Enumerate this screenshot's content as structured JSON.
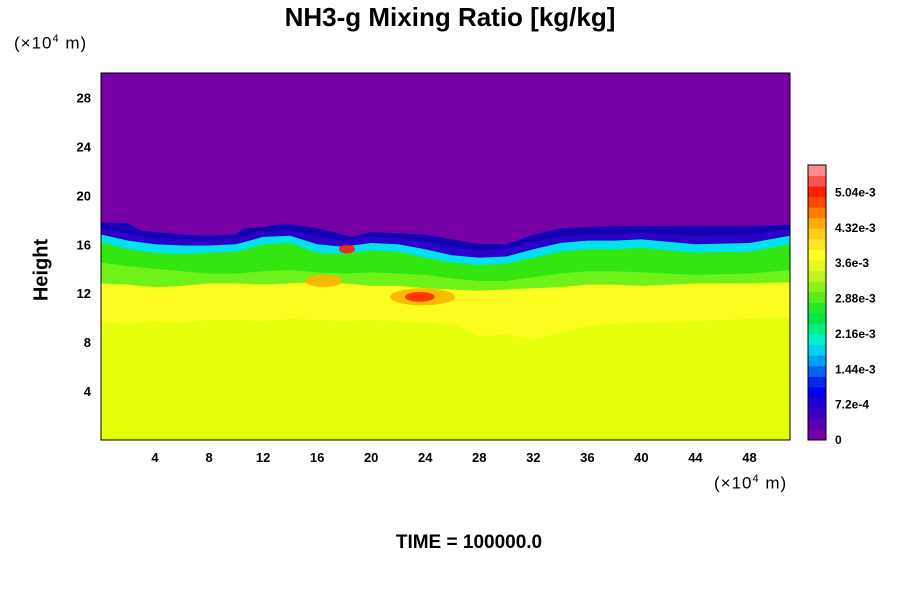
{
  "chart_data": {
    "type": "heatmap",
    "title": "NH3-g Mixing Ratio [kg/kg]",
    "ylabel": "Height",
    "xlabel": "",
    "y_unit_prefix": "(×10",
    "y_unit_exp": "4",
    "y_unit_suffix": " m)",
    "x_unit_prefix": "(×10",
    "x_unit_exp": "4",
    "x_unit_suffix": " m)",
    "xlim": [
      0,
      51
    ],
    "ylim": [
      0,
      30
    ],
    "x_ticks": [
      4,
      8,
      12,
      16,
      20,
      24,
      28,
      32,
      36,
      40,
      44,
      48
    ],
    "y_ticks": [
      4,
      8,
      12,
      16,
      20,
      24,
      28
    ],
    "colorbar": {
      "range": [
        0,
        0.0056
      ],
      "tick_labels": [
        "0",
        "7.2e-4",
        "1.44e-3",
        "2.16e-3",
        "2.88e-3",
        "3.6e-3",
        "4.32e-3",
        "5.04e-3"
      ],
      "tick_values": [
        0,
        0.00072,
        0.00144,
        0.00216,
        0.00288,
        0.0036,
        0.00432,
        0.00504
      ]
    },
    "regions": [
      {
        "name": "upper layer",
        "value": 0.0,
        "color": "#7600a6"
      },
      {
        "name": "lower layer",
        "value": 0.0037,
        "color": "#ccff00"
      }
    ],
    "boundary_top": {
      "x": [
        0,
        2,
        3,
        4,
        6,
        8,
        10,
        10.5,
        12,
        13.5,
        15,
        16.5,
        17.5,
        18.5,
        20,
        22,
        24,
        26,
        28,
        30,
        32,
        34,
        36,
        38,
        40,
        44,
        48,
        51
      ],
      "y": [
        17.8,
        17.7,
        17.1,
        17.0,
        16.8,
        16.7,
        16.8,
        17.3,
        17.4,
        17.7,
        17.5,
        17.2,
        16.9,
        16.6,
        17.0,
        16.9,
        16.8,
        16.4,
        16.0,
        16.0,
        16.8,
        17.3,
        17.4,
        17.5,
        17.5,
        17.5,
        17.5,
        17.6
      ]
    },
    "contours": [
      {
        "name": "dark blue band",
        "color": "#2b00c8",
        "x": [
          0,
          2,
          4,
          6,
          8,
          10,
          12,
          14,
          16,
          18,
          20,
          22,
          24,
          26,
          28,
          30,
          32,
          34,
          36,
          38,
          40,
          44,
          48,
          51
        ],
        "y": [
          17.3,
          16.9,
          16.5,
          16.4,
          16.4,
          16.5,
          17.0,
          17.1,
          16.6,
          16.3,
          16.6,
          16.5,
          16.2,
          15.7,
          15.5,
          15.6,
          16.2,
          16.6,
          16.8,
          16.8,
          16.9,
          16.7,
          16.8,
          17.2
        ]
      },
      {
        "name": "cyan band",
        "color": "#00e2f0",
        "x": [
          0,
          2,
          4,
          6,
          8,
          10,
          12,
          14,
          16,
          18,
          20,
          22,
          24,
          26,
          28,
          30,
          32,
          34,
          36,
          38,
          40,
          44,
          48,
          51
        ],
        "y": [
          16.8,
          16.3,
          16.0,
          15.9,
          15.9,
          16.0,
          16.6,
          16.7,
          16.0,
          15.8,
          16.1,
          16.0,
          15.6,
          15.1,
          14.9,
          15.0,
          15.6,
          16.1,
          16.3,
          16.3,
          16.4,
          16.0,
          16.1,
          16.7
        ]
      },
      {
        "name": "green band",
        "color": "#33e60f",
        "x": [
          0,
          2,
          4,
          6,
          8,
          10,
          12,
          14,
          16,
          18,
          20,
          22,
          24,
          26,
          28,
          30,
          32,
          34,
          36,
          38,
          40,
          44,
          48,
          51
        ],
        "y": [
          16.2,
          15.6,
          15.3,
          15.2,
          15.3,
          15.4,
          16.0,
          16.1,
          15.3,
          15.2,
          15.5,
          15.4,
          14.9,
          14.5,
          14.3,
          14.4,
          14.9,
          15.4,
          15.6,
          15.6,
          15.7,
          15.3,
          15.4,
          16.0
        ]
      },
      {
        "name": "light green band",
        "color": "#6ef21a",
        "x": [
          0,
          2,
          4,
          6,
          8,
          10,
          12,
          14,
          16,
          18,
          20,
          22,
          24,
          26,
          28,
          30,
          32,
          34,
          36,
          38,
          40,
          44,
          48,
          51
        ],
        "y": [
          14.5,
          14.2,
          14.0,
          13.8,
          13.6,
          13.6,
          13.8,
          13.9,
          13.7,
          13.6,
          13.7,
          13.6,
          13.5,
          13.2,
          13.0,
          13.0,
          13.3,
          13.6,
          13.8,
          13.8,
          13.7,
          13.5,
          13.6,
          13.9
        ]
      },
      {
        "name": "yellow band",
        "color": "#fcfc1e",
        "x": [
          0,
          2,
          4,
          6,
          8,
          10,
          12,
          14,
          16,
          18,
          20,
          22,
          24,
          26,
          28,
          30,
          32,
          34,
          36,
          38,
          40,
          44,
          48,
          51
        ],
        "y": [
          12.8,
          12.7,
          12.5,
          12.6,
          12.8,
          12.8,
          12.7,
          12.8,
          12.9,
          12.8,
          12.6,
          12.6,
          12.4,
          12.3,
          12.2,
          12.3,
          12.4,
          12.5,
          12.7,
          12.7,
          12.6,
          12.8,
          12.8,
          12.9
        ]
      },
      {
        "name": "yellow-green transition",
        "color": "#e6ff0a",
        "x": [
          0,
          2,
          4,
          6,
          8,
          10,
          12,
          14,
          16,
          18,
          20,
          22,
          24,
          26,
          28,
          30,
          32,
          34,
          36,
          38,
          40,
          44,
          48,
          51
        ],
        "y": [
          9.6,
          9.5,
          9.7,
          9.6,
          9.8,
          9.8,
          9.7,
          9.9,
          9.8,
          9.7,
          9.8,
          9.7,
          9.6,
          9.5,
          8.5,
          8.6,
          8.2,
          8.8,
          9.3,
          9.5,
          9.6,
          9.7,
          9.9,
          10.0
        ]
      },
      {
        "name": "lower fill",
        "color": "#ccff00",
        "x": [
          0,
          51
        ],
        "y": [
          0,
          0
        ]
      }
    ],
    "hotspots": [
      {
        "name": "orange patch",
        "x": 23.8,
        "y": 11.7,
        "rx": 2.4,
        "ry": 0.7,
        "color": "#ffb400"
      },
      {
        "name": "red core",
        "x": 23.6,
        "y": 11.7,
        "rx": 1.1,
        "ry": 0.4,
        "color": "#ff2800"
      },
      {
        "name": "orange patch 2",
        "x": 16.5,
        "y": 13.0,
        "rx": 1.4,
        "ry": 0.5,
        "color": "#ffb400"
      },
      {
        "name": "red spot",
        "x": 18.2,
        "y": 15.6,
        "rx": 0.6,
        "ry": 0.35,
        "color": "#ff1e00"
      }
    ]
  },
  "footer": {
    "time": "TIME = 100000.0"
  }
}
